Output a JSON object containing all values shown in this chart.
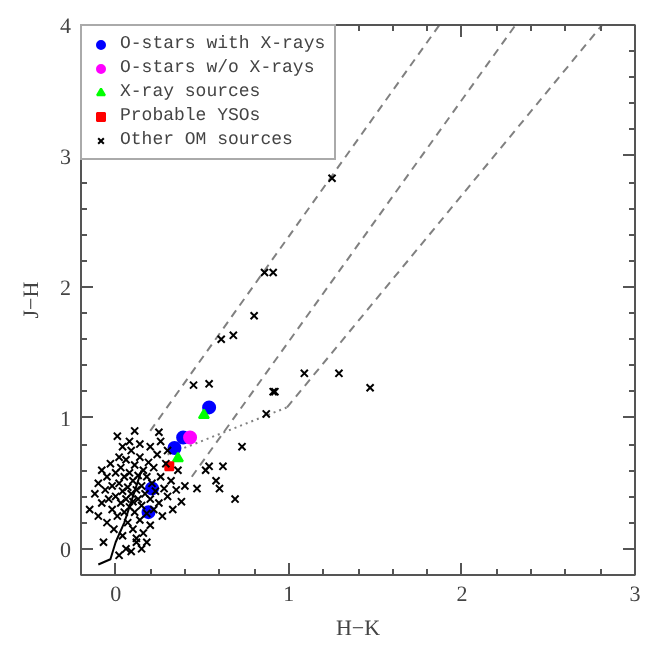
{
  "chart_data": {
    "type": "scatter",
    "xlabel": "H−K",
    "ylabel": "J−H",
    "xlim": [
      -0.2,
      3
    ],
    "ylim": [
      -0.2,
      4
    ],
    "xticks": [
      0,
      {
        "value": 0.2,
        "label": null
      },
      {
        "value": 0.4,
        "label": null
      },
      {
        "value": 0.6,
        "label": null
      },
      {
        "value": 0.8,
        "label": null
      },
      1,
      {
        "value": 1.2,
        "label": null
      },
      {
        "value": 1.4,
        "label": null
      },
      {
        "value": 1.6,
        "label": null
      },
      {
        "value": 1.8,
        "label": null
      },
      2,
      {
        "value": 2.2,
        "label": null
      },
      {
        "value": 2.4,
        "label": null
      },
      {
        "value": 2.6,
        "label": null
      },
      {
        "value": 2.8,
        "label": null
      },
      3
    ],
    "yticks": [
      0,
      {
        "value": 0.2,
        "label": null
      },
      {
        "value": 0.4,
        "label": null
      },
      {
        "value": 0.6,
        "label": null
      },
      {
        "value": 0.8,
        "label": null
      },
      1,
      {
        "value": 1.2,
        "label": null
      },
      {
        "value": 1.4,
        "label": null
      },
      {
        "value": 1.6,
        "label": null
      },
      {
        "value": 1.8,
        "label": null
      },
      2,
      {
        "value": 2.2,
        "label": null
      },
      {
        "value": 2.4,
        "label": null
      },
      {
        "value": 2.6,
        "label": null
      },
      {
        "value": 2.8,
        "label": null
      },
      3,
      {
        "value": 3.2,
        "label": null
      },
      {
        "value": 3.4,
        "label": null
      },
      {
        "value": 3.6,
        "label": null
      },
      {
        "value": 3.8,
        "label": null
      },
      4
    ],
    "grid": false,
    "legend": "top left",
    "series": [
      {
        "type": "line",
        "line_style": "dashed",
        "marker": "none",
        "color": "#808080",
        "x": [
          0.2,
          1.87
        ],
        "values": [
          0.9,
          4
        ]
      },
      {
        "type": "line",
        "line_style": "dashed",
        "marker": "none",
        "color": "#808080",
        "x": [
          0.44,
          2.31
        ],
        "values": [
          0.55,
          4
        ]
      },
      {
        "type": "line",
        "line_style": "dashed",
        "marker": "none",
        "color": "#808080",
        "x": [
          0.99,
          2.81
        ],
        "values": [
          1.08,
          4
        ]
      },
      {
        "type": "line",
        "line_style": "dotted",
        "marker": "none",
        "color": "#808080",
        "x": [
          0.3,
          0.99
        ],
        "values": [
          0.72,
          1.08
        ]
      },
      {
        "type": "line",
        "line_style": "solid",
        "marker": "none",
        "color": "#000000",
        "x": [
          -0.1,
          -0.03,
          0.0,
          0.05,
          0.1,
          0.15
        ],
        "values": [
          -0.12,
          -0.08,
          0.05,
          0.2,
          0.4,
          0.6
        ]
      },
      {
        "name": "O-stars with X-rays",
        "marker": "circle",
        "color": "#0000ff",
        "x": [
          0.54,
          0.39,
          0.34,
          0.21,
          0.19
        ],
        "values": [
          1.08,
          0.85,
          0.77,
          0.46,
          0.28
        ]
      },
      {
        "name": "O-stars w/o X-rays",
        "marker": "circle",
        "color": "#ff00ff",
        "x": [
          0.43
        ],
        "values": [
          0.85
        ]
      },
      {
        "name": "X-ray sources",
        "marker": "triangle",
        "color": "#00ff00",
        "x": [
          0.51,
          0.36
        ],
        "values": [
          1.02,
          0.69
        ]
      },
      {
        "name": "Probable YSOs",
        "marker": "square",
        "color": "#ff0000",
        "x": [
          0.31
        ],
        "values": [
          0.63
        ]
      },
      {
        "name": "Other OM sources",
        "marker": "cross",
        "color": "#000000",
        "x": [
          1.25,
          0.86,
          0.91,
          0.8,
          0.61,
          0.68,
          0.54,
          1.09,
          1.29,
          1.47,
          0.91,
          0.87,
          0.73,
          0.62,
          0.54,
          0.58,
          0.92,
          0.52,
          0.47,
          0.69,
          0.6,
          0.4,
          0.45,
          0.25,
          -0.1,
          -0.07,
          -0.15,
          -0.12,
          -0.1,
          -0.08,
          -0.08,
          -0.06,
          -0.05,
          -0.05,
          -0.04,
          -0.03,
          -0.02,
          -0.02,
          -0.01,
          0.0,
          0.0,
          0.01,
          0.02,
          0.02,
          0.03,
          0.03,
          0.04,
          0.04,
          0.05,
          0.05,
          0.06,
          0.06,
          0.07,
          0.07,
          0.08,
          0.08,
          0.09,
          0.09,
          0.1,
          0.1,
          0.1,
          0.11,
          0.11,
          0.12,
          0.12,
          0.13,
          0.13,
          0.14,
          0.14,
          0.15,
          0.15,
          0.16,
          0.16,
          0.17,
          0.18,
          0.18,
          0.19,
          0.2,
          0.2,
          0.21,
          0.22,
          0.22,
          0.23,
          0.24,
          0.25,
          0.26,
          0.27,
          0.28,
          0.29,
          0.3,
          0.32,
          0.33,
          0.35,
          0.36,
          0.38,
          0.02,
          0.06,
          0.09,
          0.12,
          0.15,
          0.18,
          0.04,
          0.08,
          0.14,
          0.2,
          0.26,
          0.3,
          0.01,
          0.11
        ],
        "values": [
          2.83,
          2.11,
          2.11,
          1.78,
          1.6,
          1.63,
          1.26,
          1.34,
          1.34,
          1.23,
          1.2,
          1.03,
          0.78,
          0.63,
          0.63,
          0.52,
          1.2,
          0.6,
          0.46,
          0.38,
          0.46,
          0.48,
          1.25,
          0.89,
          0.25,
          0.05,
          0.3,
          0.42,
          0.5,
          0.35,
          0.6,
          0.45,
          0.2,
          0.55,
          0.38,
          0.65,
          0.3,
          0.48,
          0.15,
          0.4,
          0.58,
          0.25,
          0.5,
          0.7,
          0.35,
          0.62,
          0.1,
          0.44,
          0.28,
          0.55,
          0.38,
          0.68,
          0.2,
          0.47,
          0.32,
          0.58,
          0.42,
          0.75,
          0.15,
          0.36,
          0.52,
          0.28,
          0.64,
          0.45,
          0.05,
          0.38,
          0.56,
          0.22,
          0.7,
          0.48,
          0.33,
          0.6,
          0.12,
          0.42,
          0.27,
          0.55,
          0.66,
          0.38,
          0.18,
          0.5,
          0.3,
          0.62,
          0.44,
          0.72,
          0.35,
          0.55,
          0.25,
          0.46,
          0.65,
          0.4,
          0.52,
          0.3,
          0.45,
          0.6,
          0.36,
          -0.05,
          0.0,
          -0.02,
          0.08,
          0.0,
          0.05,
          0.78,
          0.82,
          0.8,
          0.78,
          0.82,
          0.75,
          0.86,
          0.9
        ]
      }
    ]
  }
}
